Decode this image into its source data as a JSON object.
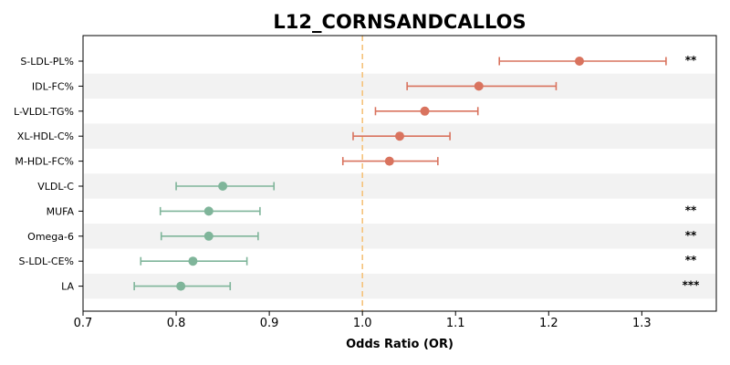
{
  "chart_data": {
    "type": "forest",
    "title": "L12_CORNSANDCALLOS",
    "xlabel": "Odds Ratio (OR)",
    "xlim": [
      0.7,
      1.38
    ],
    "xticks": [
      0.7,
      0.8,
      0.9,
      1.0,
      1.1,
      1.2,
      1.3
    ],
    "xtick_labels": [
      "0.7",
      "0.8",
      "0.9",
      "1.0",
      "1.1",
      "1.2",
      "1.3"
    ],
    "reference_line": 1.0,
    "colors": {
      "positive": "#d9735e",
      "negative": "#7fb59a",
      "reference": "#f5c27a",
      "band": "#f2f2f2"
    },
    "rows": [
      {
        "label": "S-LDL-PL%",
        "or": 1.233,
        "lo": 1.147,
        "hi": 1.326,
        "sig": "**"
      },
      {
        "label": "IDL-FC%",
        "or": 1.125,
        "lo": 1.048,
        "hi": 1.208,
        "sig": ""
      },
      {
        "label": "L-VLDL-TG%",
        "or": 1.067,
        "lo": 1.014,
        "hi": 1.124,
        "sig": ""
      },
      {
        "label": "XL-HDL-C%",
        "or": 1.04,
        "lo": 0.99,
        "hi": 1.094,
        "sig": ""
      },
      {
        "label": "M-HDL-FC%",
        "or": 1.029,
        "lo": 0.979,
        "hi": 1.081,
        "sig": ""
      },
      {
        "label": "VLDL-C",
        "or": 0.85,
        "lo": 0.8,
        "hi": 0.905,
        "sig": ""
      },
      {
        "label": "MUFA",
        "or": 0.835,
        "lo": 0.783,
        "hi": 0.89,
        "sig": "**"
      },
      {
        "label": "Omega-6",
        "or": 0.835,
        "lo": 0.784,
        "hi": 0.888,
        "sig": "**"
      },
      {
        "label": "S-LDL-CE%",
        "or": 0.818,
        "lo": 0.762,
        "hi": 0.876,
        "sig": "**"
      },
      {
        "label": "LA",
        "or": 0.805,
        "lo": 0.755,
        "hi": 0.858,
        "sig": "***"
      }
    ]
  }
}
